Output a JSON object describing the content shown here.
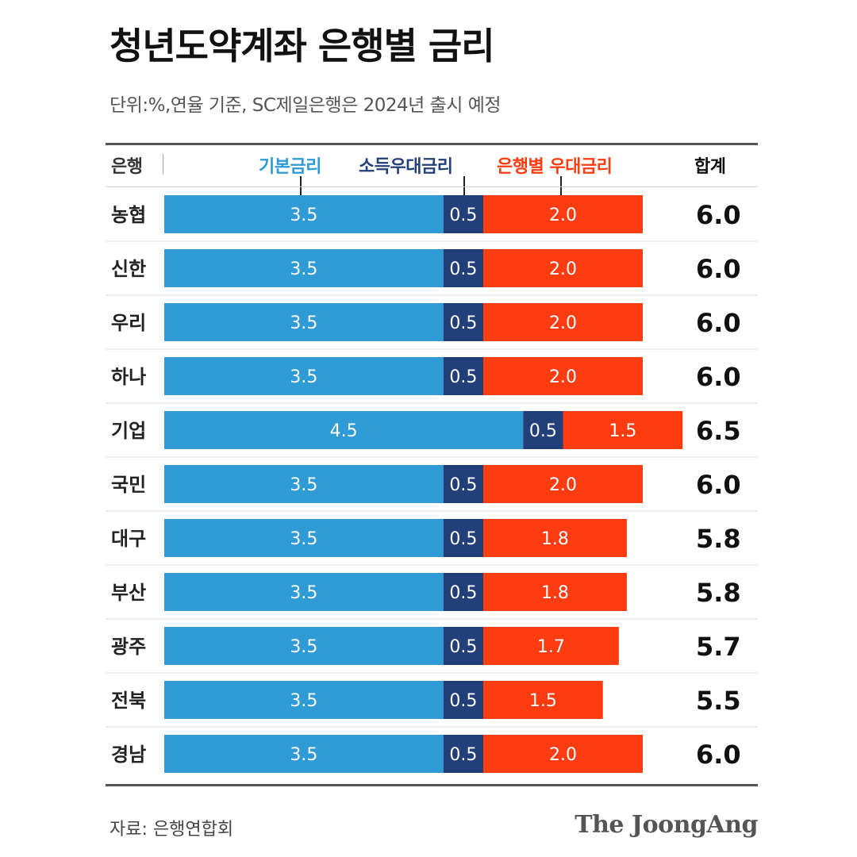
{
  "title": "청년도약계좌 은행별 금리",
  "subtitle": "단위:%,연율 기준, SC제일은행은 2024년 출시 예정",
  "header": {
    "bank_label": "은행",
    "total_label": "합계"
  },
  "footer": {
    "source": "자료: 은행연합회",
    "brand": "The JoongAng"
  },
  "colors": {
    "base": "#2f9bd6",
    "income": "#223f7a",
    "bank": "#ff3b10"
  },
  "chart_data": {
    "type": "bar",
    "orientation": "horizontal",
    "stacked": true,
    "categories": [
      "농협",
      "신한",
      "우리",
      "하나",
      "기업",
      "국민",
      "대구",
      "부산",
      "광주",
      "전북",
      "경남"
    ],
    "series": [
      {
        "name": "기본금리",
        "values": [
          3.5,
          3.5,
          3.5,
          3.5,
          4.5,
          3.5,
          3.5,
          3.5,
          3.5,
          3.5,
          3.5
        ]
      },
      {
        "name": "소득우대금리",
        "values": [
          0.5,
          0.5,
          0.5,
          0.5,
          0.5,
          0.5,
          0.5,
          0.5,
          0.5,
          0.5,
          0.5
        ]
      },
      {
        "name": "은행별 우대금리",
        "values": [
          2.0,
          2.0,
          2.0,
          2.0,
          1.5,
          2.0,
          1.8,
          1.8,
          1.7,
          1.5,
          2.0
        ]
      }
    ],
    "totals": [
      "6.0",
      "6.0",
      "6.0",
      "6.0",
      "6.5",
      "6.0",
      "5.8",
      "5.8",
      "5.7",
      "5.5",
      "6.0"
    ],
    "xlim": [
      0,
      6.5
    ]
  }
}
